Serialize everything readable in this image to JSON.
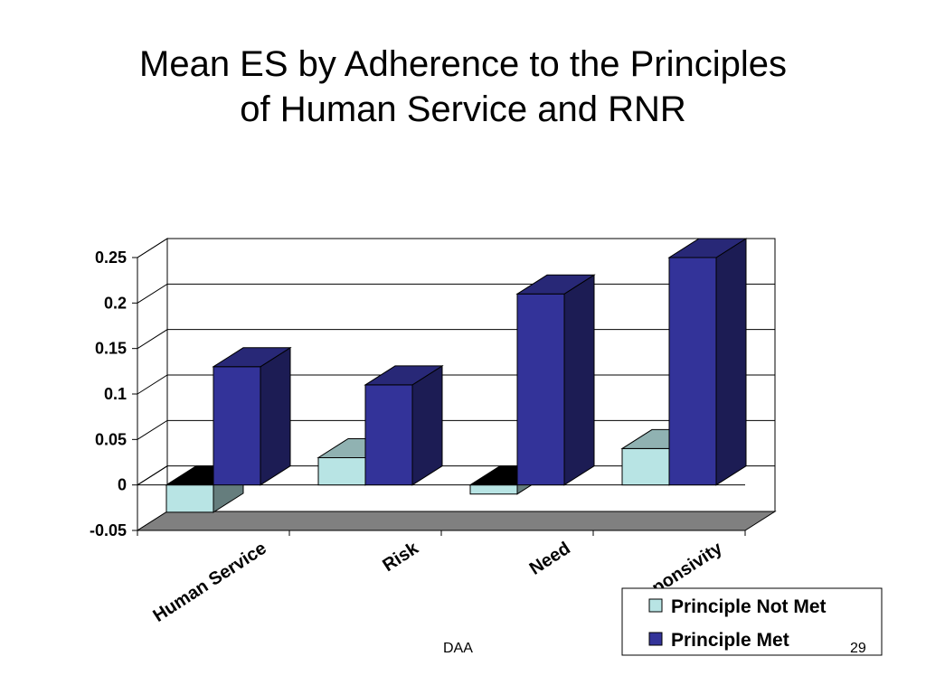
{
  "slide": {
    "title_line1": "Mean ES by Adherence to the Principles",
    "title_line2": "of Human Service and RNR",
    "footer_left": "DAA",
    "page_number": "29"
  },
  "chart_data": {
    "type": "bar",
    "style": "3d-clustered-column",
    "categories": [
      "Human Service",
      "Risk",
      "Need",
      "Responsivity"
    ],
    "series": [
      {
        "name": "Principle Not Met",
        "values": [
          -0.03,
          0.03,
          -0.01,
          0.04
        ],
        "color": "#B8E4E4"
      },
      {
        "name": "Principle Met",
        "values": [
          0.13,
          0.11,
          0.21,
          0.25
        ],
        "color": "#333399"
      }
    ],
    "ylim": [
      -0.05,
      0.25
    ],
    "yticks": [
      0.25,
      0.2,
      0.15,
      0.1,
      0.05,
      0,
      -0.05
    ],
    "ytick_labels": [
      "0.25",
      "0.2",
      "0.15",
      "0.1",
      "0.05",
      "0",
      "-0.05"
    ],
    "grid": true,
    "legend_position": "bottom-right",
    "floor_color": "#808080"
  }
}
